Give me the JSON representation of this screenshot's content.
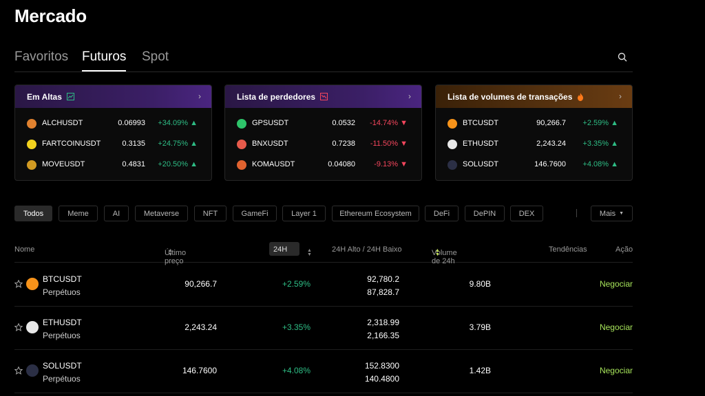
{
  "page": {
    "title": "Mercado"
  },
  "tabs": [
    {
      "label": "Favoritos"
    },
    {
      "label": "Futuros",
      "active": true
    },
    {
      "label": "Spot"
    }
  ],
  "cards": [
    {
      "title": "Em Altas",
      "icon": "chart-up-icon",
      "rows": [
        {
          "symbol": "ALCHUSDT",
          "price": "0.06993",
          "change": "+34.09%",
          "dir": "up",
          "icon_color": "#e0812f"
        },
        {
          "symbol": "FARTCOINUSDT",
          "price": "0.3135",
          "change": "+24.75%",
          "dir": "up",
          "icon_color": "#f2d21e"
        },
        {
          "symbol": "MOVEUSDT",
          "price": "0.4831",
          "change": "+20.50%",
          "dir": "up",
          "icon_color": "#d19a22"
        }
      ]
    },
    {
      "title": "Lista de perdedores",
      "icon": "chart-down-icon",
      "rows": [
        {
          "symbol": "GPSUSDT",
          "price": "0.0532",
          "change": "-14.74%",
          "dir": "down",
          "icon_color": "#2ec46a"
        },
        {
          "symbol": "BNXUSDT",
          "price": "0.7238",
          "change": "-11.50%",
          "dir": "down",
          "icon_color": "#e65a4b"
        },
        {
          "symbol": "KOMAUSDT",
          "price": "0.04080",
          "change": "-9.13%",
          "dir": "down",
          "icon_color": "#e0622f"
        }
      ]
    },
    {
      "title": "Lista de volumes de transações",
      "icon": "fire-icon",
      "rows": [
        {
          "symbol": "BTCUSDT",
          "price": "90,266.7",
          "change": "+2.59%",
          "dir": "up",
          "icon_color": "#f7931a"
        },
        {
          "symbol": "ETHUSDT",
          "price": "2,243.24",
          "change": "+3.35%",
          "dir": "up",
          "icon_color": "#e8e8e8"
        },
        {
          "symbol": "SOLUSDT",
          "price": "146.7600",
          "change": "+4.08%",
          "dir": "up",
          "icon_color": "#2b2f45"
        }
      ]
    }
  ],
  "filters": [
    "Todos",
    "Meme",
    "AI",
    "Metaverse",
    "NFT",
    "GameFi",
    "Layer 1",
    "Ethereum Ecosystem",
    "DeFi",
    "DePIN",
    "DEX"
  ],
  "more_label": "Mais",
  "table": {
    "headers": {
      "name": "Nome",
      "last_price": "Último preço",
      "period": "24H",
      "high_low": "24H Alto / 24H Baixo",
      "volume": "Volume de 24h",
      "trends": "Tendências",
      "action": "Ação"
    },
    "rows": [
      {
        "symbol": "BTCUSDT",
        "type": "Perpétuos",
        "last_price": "90,266.7",
        "change": "+2.59%",
        "high": "92,780.2",
        "low": "87,828.7",
        "volume": "9.80B",
        "action": "Negociar",
        "icon_color": "#f7931a"
      },
      {
        "symbol": "ETHUSDT",
        "type": "Perpétuos",
        "last_price": "2,243.24",
        "change": "+3.35%",
        "high": "2,318.99",
        "low": "2,166.35",
        "volume": "3.79B",
        "action": "Negociar",
        "icon_color": "#e8e8e8"
      },
      {
        "symbol": "SOLUSDT",
        "type": "Perpétuos",
        "last_price": "146.7600",
        "change": "+4.08%",
        "high": "152.8300",
        "low": "140.4800",
        "volume": "1.42B",
        "action": "Negociar",
        "icon_color": "#2b2f45"
      }
    ]
  }
}
